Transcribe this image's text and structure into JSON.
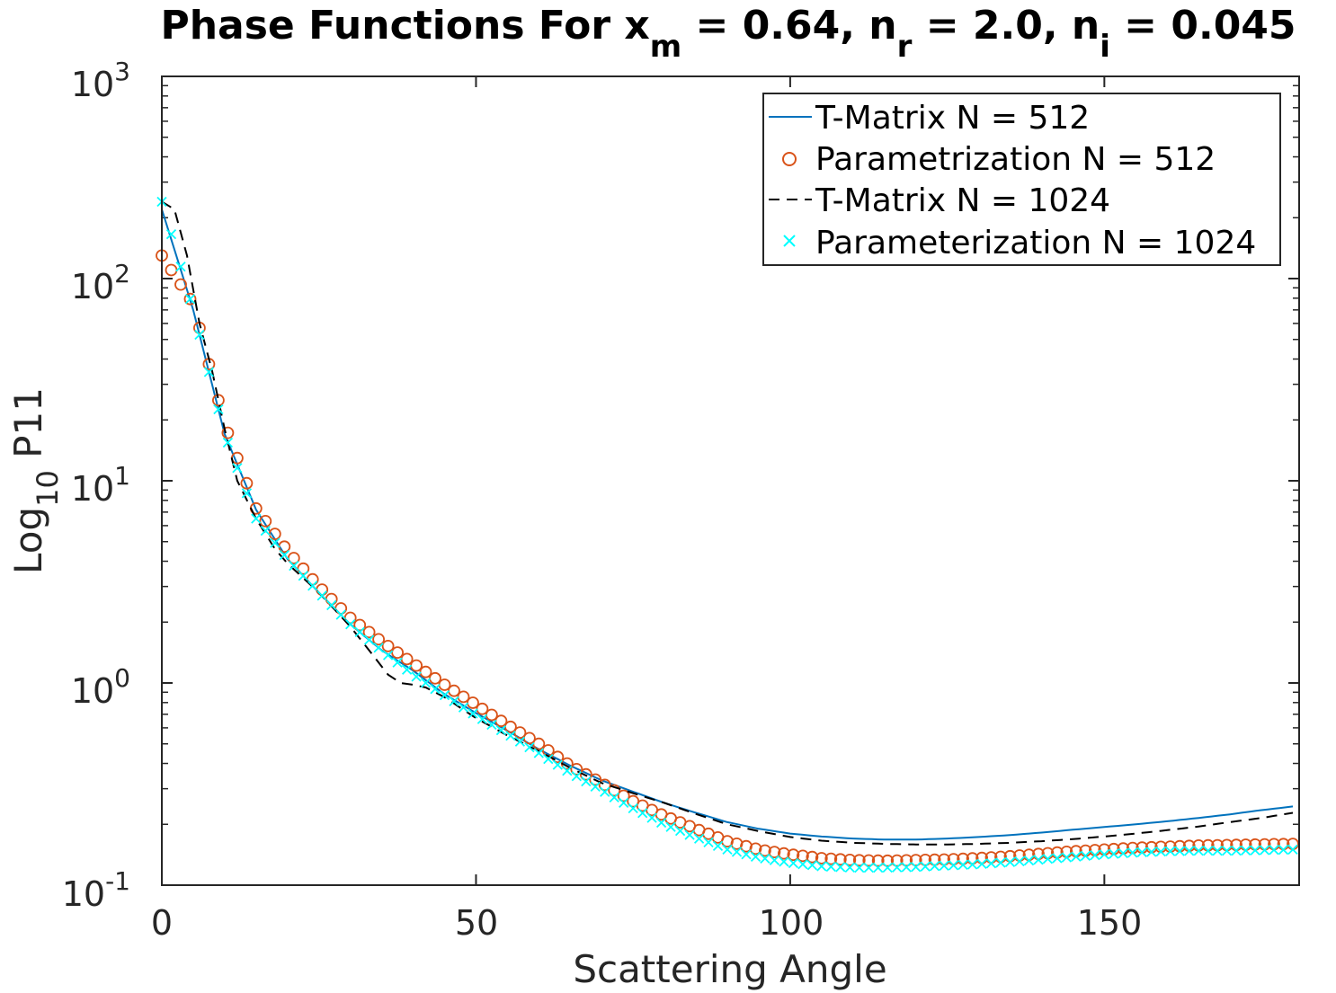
{
  "chart_data": {
    "type": "line",
    "title": {
      "prefix": "Phase Functions For x",
      "sub1": "m",
      "mid1": " = 0.64, n",
      "sub2": "r",
      "mid2": " = 2.0, n",
      "sub3": "i",
      "suffix": " = 0.045"
    },
    "xlabel": "Scattering Angle",
    "ylabel": {
      "main": "Log",
      "sub": "10",
      "rest": " P11"
    },
    "xlim": [
      0,
      181
    ],
    "ylim": [
      0.1,
      1000
    ],
    "yscale": "log",
    "grid": false,
    "legend_position": "top-right",
    "x_ticks": [
      "0",
      "50",
      "100",
      "150"
    ],
    "y_ticks": [
      {
        "base": "10",
        "exp": "-1"
      },
      {
        "base": "10",
        "exp": "0"
      },
      {
        "base": "10",
        "exp": "1"
      },
      {
        "base": "10",
        "exp": "2"
      },
      {
        "base": "10",
        "exp": "3"
      }
    ],
    "series": [
      {
        "name": "T-Matrix N = 512",
        "style": "solid",
        "color": "#0072BD",
        "x": [
          0,
          5,
          10,
          15,
          20,
          25,
          30,
          35,
          40,
          45,
          50,
          55,
          60,
          65,
          70,
          75,
          80,
          85,
          90,
          95,
          100,
          105,
          110,
          115,
          120,
          125,
          130,
          135,
          140,
          145,
          150,
          155,
          160,
          165,
          170,
          175,
          180
        ],
        "y": [
          220,
          70,
          17,
          7.2,
          4.1,
          2.8,
          1.95,
          1.45,
          1.15,
          0.88,
          0.71,
          0.58,
          0.47,
          0.39,
          0.33,
          0.29,
          0.255,
          0.228,
          0.205,
          0.19,
          0.18,
          0.174,
          0.17,
          0.168,
          0.168,
          0.17,
          0.173,
          0.177,
          0.182,
          0.188,
          0.194,
          0.2,
          0.207,
          0.215,
          0.224,
          0.235,
          0.245
        ]
      },
      {
        "name": "Parametrization N = 512",
        "style": "circle",
        "color": "#D95319",
        "x": [
          0,
          5,
          10,
          15,
          20,
          25,
          30,
          35,
          40,
          45,
          50,
          55,
          60,
          65,
          70,
          75,
          80,
          85,
          90,
          95,
          100,
          105,
          110,
          115,
          120,
          125,
          130,
          135,
          140,
          145,
          150,
          155,
          160,
          165,
          170,
          175,
          180
        ],
        "y": [
          130,
          75,
          19,
          7.3,
          4.5,
          3.0,
          2.1,
          1.6,
          1.25,
          0.98,
          0.78,
          0.62,
          0.5,
          0.39,
          0.32,
          0.26,
          0.22,
          0.19,
          0.165,
          0.15,
          0.142,
          0.136,
          0.133,
          0.132,
          0.133,
          0.134,
          0.136,
          0.139,
          0.143,
          0.147,
          0.15,
          0.153,
          0.155,
          0.157,
          0.158,
          0.159,
          0.16
        ]
      },
      {
        "name": "T-Matrix N = 1024",
        "style": "dashed",
        "color": "#000000",
        "x": [
          0,
          2,
          4,
          6,
          8,
          10,
          12,
          15,
          18,
          20,
          25,
          30,
          33,
          36,
          38,
          40,
          42,
          45,
          50,
          55,
          60,
          65,
          70,
          75,
          80,
          85,
          90,
          95,
          100,
          105,
          110,
          115,
          120,
          125,
          130,
          135,
          140,
          145,
          150,
          155,
          160,
          165,
          170,
          175,
          180
        ],
        "y": [
          240,
          220,
          130,
          60,
          35,
          18,
          10,
          6.5,
          4.6,
          3.9,
          2.8,
          1.9,
          1.45,
          1.1,
          1.0,
          0.98,
          0.95,
          0.85,
          0.67,
          0.55,
          0.46,
          0.38,
          0.32,
          0.285,
          0.255,
          0.225,
          0.2,
          0.185,
          0.173,
          0.166,
          0.162,
          0.16,
          0.159,
          0.159,
          0.16,
          0.162,
          0.165,
          0.169,
          0.174,
          0.18,
          0.187,
          0.195,
          0.205,
          0.215,
          0.228
        ]
      },
      {
        "name": "Parameterization N = 1024",
        "style": "cross",
        "color": "#00FFFF",
        "x": [
          0,
          5,
          10,
          15,
          20,
          25,
          30,
          35,
          40,
          45,
          50,
          55,
          60,
          65,
          70,
          75,
          80,
          85,
          90,
          95,
          100,
          105,
          110,
          115,
          120,
          125,
          130,
          135,
          140,
          145,
          150,
          155,
          160,
          165,
          170,
          175,
          180
        ],
        "y": [
          240,
          70,
          17,
          6.5,
          4.1,
          2.8,
          1.95,
          1.45,
          1.1,
          0.87,
          0.69,
          0.56,
          0.45,
          0.36,
          0.295,
          0.24,
          0.2,
          0.172,
          0.15,
          0.137,
          0.129,
          0.124,
          0.122,
          0.122,
          0.123,
          0.125,
          0.127,
          0.13,
          0.134,
          0.138,
          0.142,
          0.145,
          0.147,
          0.148,
          0.148,
          0.149,
          0.15
        ]
      }
    ]
  }
}
